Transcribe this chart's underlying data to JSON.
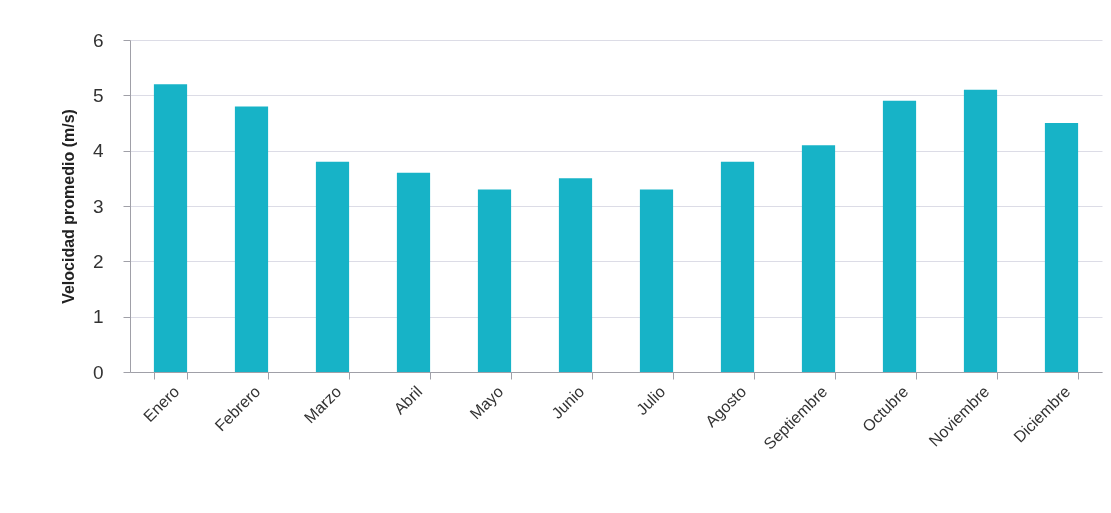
{
  "chart_data": {
    "type": "bar",
    "ylabel": "Velocidad promedio (m/s)",
    "categories": [
      "Enero",
      "Febrero",
      "Marzo",
      "Abril",
      "Mayo",
      "Junio",
      "Julio",
      "Agosto",
      "Septiembre",
      "Octubre",
      "Noviembre",
      "Diciembre"
    ],
    "values": [
      5.2,
      4.8,
      3.8,
      3.6,
      3.3,
      3.5,
      3.3,
      3.8,
      4.1,
      4.9,
      5.1,
      4.5
    ],
    "color": "#17b3c7",
    "ylim": [
      0,
      6
    ],
    "yticks": [
      0,
      1,
      2,
      3,
      4,
      5,
      6
    ],
    "grid": "y"
  }
}
